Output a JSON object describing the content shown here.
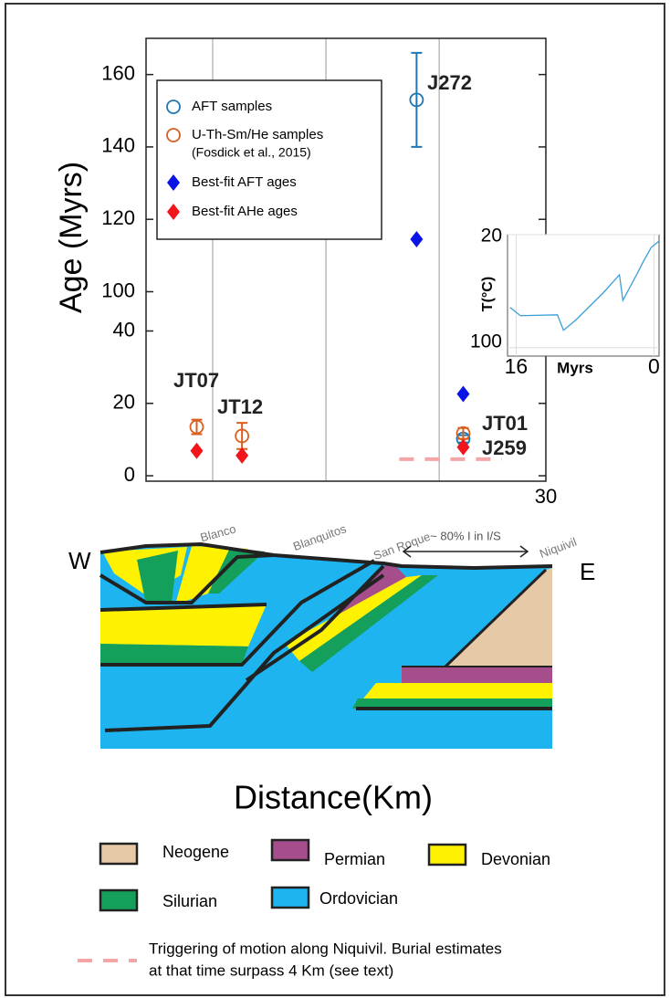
{
  "chart_data": [
    {
      "type": "scatter",
      "ylabel": "Age (Myrs)",
      "xlabel": "Distance(Km)",
      "xlim": [
        0,
        30
      ],
      "xticks": [
        {
          "value": 5,
          "label": null
        },
        {
          "value": 13.5,
          "label": null
        },
        {
          "value": 22,
          "label": null
        },
        30
      ],
      "ylim": [
        -1.5,
        170
      ],
      "axis_break": [
        40,
        100
      ],
      "yticks": [
        0,
        20,
        40,
        100,
        120,
        140,
        160
      ],
      "grid": true,
      "x": [
        3.8,
        7.2,
        20.3,
        23.8
      ],
      "point_labels": [
        "JT07",
        "JT12",
        "J272",
        "JT01",
        "J259"
      ],
      "series": [
        {
          "name": [
            "AFT samples"
          ],
          "marker": "circle",
          "color": "#1f77b4",
          "values": [
            null,
            null,
            153,
            10.2
          ],
          "errors": [
            null,
            null,
            13,
            1
          ]
        },
        {
          "name": [
            "U-Th-Sm/He samples",
            "(Fosdick et al., 2015)"
          ],
          "marker": "circle",
          "color": "#d95f1e",
          "values": [
            13.5,
            11,
            null,
            11.7
          ],
          "errors": [
            2,
            3.6,
            null,
            1.5
          ]
        },
        {
          "name": [
            "Best-fit AFT ages"
          ],
          "marker": "diamond",
          "color": "#0a14e6",
          "values": [
            null,
            null,
            114.5,
            22.6
          ]
        },
        {
          "name": [
            "Best-fit AHe ages"
          ],
          "marker": "diamond",
          "color": "#f0161c",
          "values": [
            6.9,
            5.6,
            null,
            7.9
          ]
        }
      ],
      "reference_line": {
        "value": 4.6,
        "x": [
          19,
          26.7
        ],
        "color": "#f4a6a6",
        "label": [
          "Triggering of motion along Niquivil. Burial estimates",
          "at that time surpass 4 Km (see text)"
        ]
      }
    },
    {
      "type": "line",
      "xlabel": "Myrs",
      "ylabel": "T(°C)",
      "xlim": [
        17,
        -0.6
      ],
      "xticks": [
        16,
        0
      ],
      "ylim": [
        20,
        106
      ],
      "yticks": [
        20,
        100
      ],
      "y_inverted": true,
      "x": [
        16.7,
        15.5,
        11.2,
        10.5,
        9.1,
        5.9,
        4.0,
        3.6,
        1.9,
        1.2,
        0.3,
        -0.6
      ],
      "values": [
        71.6,
        77.4,
        76.8,
        87.7,
        80.6,
        61.3,
        48.4,
        66.5,
        47.1,
        38.7,
        29,
        24.5
      ],
      "color": "#3a9fd8"
    }
  ],
  "cross_section": {
    "labels": [
      "W",
      "E",
      "Blanco",
      "Blanquitos",
      "San Roque",
      "Niquivil",
      "~ 80% I in I/S"
    ]
  },
  "geology_legend": {
    "units": [
      {
        "name": "Neogene",
        "color": "#e6caa8"
      },
      {
        "name": "Permian",
        "color": "#a64d8c"
      },
      {
        "name": "Devonian",
        "color": "#fff200"
      },
      {
        "name": "Silurian",
        "color": "#14a05a"
      },
      {
        "name": "Ordovician",
        "color": "#1eb4ef"
      }
    ]
  }
}
